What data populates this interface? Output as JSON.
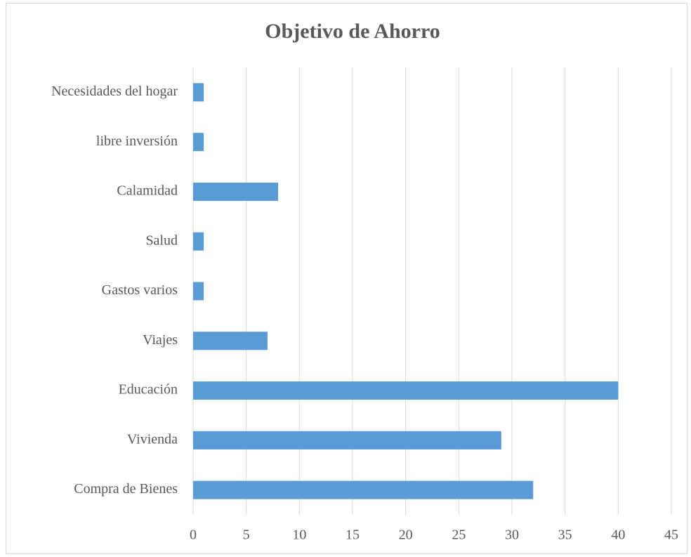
{
  "chart_data": {
    "type": "bar",
    "orientation": "horizontal",
    "title": "Objetivo de Ahorro",
    "categories": [
      "Compra de Bienes",
      "Vivienda",
      "Educación",
      "Viajes",
      "Gastos varios",
      "Salud",
      "Calamidad",
      "libre inversión",
      "Necesidades del hogar"
    ],
    "values": [
      32,
      29,
      40,
      7,
      1,
      1,
      8,
      1,
      1
    ],
    "color": "#5b9bd5",
    "xlim": [
      0,
      45
    ],
    "xticks": [
      0,
      5,
      10,
      15,
      20,
      25,
      30,
      35,
      40,
      45
    ],
    "grid": true
  }
}
